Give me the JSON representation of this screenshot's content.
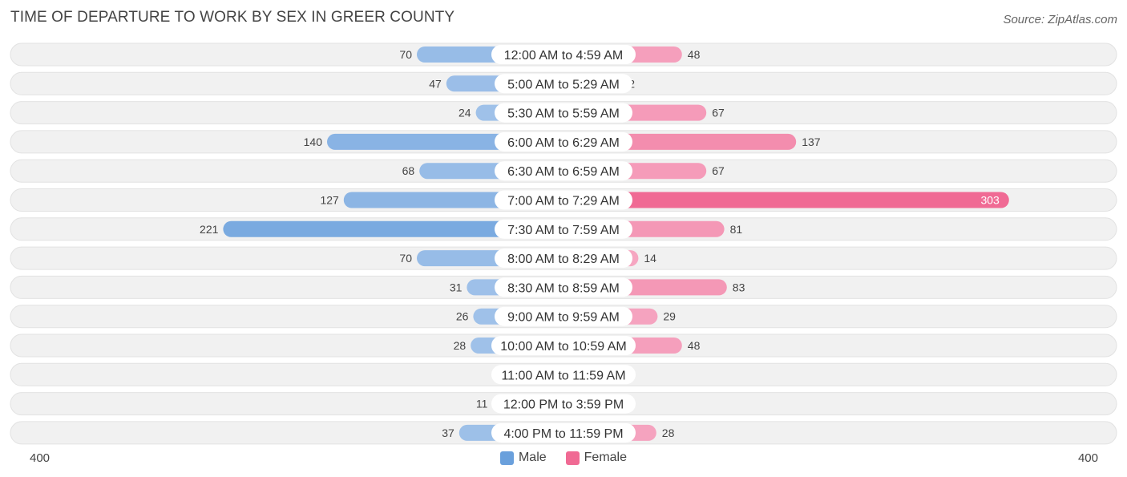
{
  "title": "TIME OF DEPARTURE TO WORK BY SEX IN GREER COUNTY",
  "source": "Source: ZipAtlas.com",
  "chart_data": {
    "type": "bar",
    "orientation": "horizontal-diverging",
    "categories": [
      "12:00 AM to 4:59 AM",
      "5:00 AM to 5:29 AM",
      "5:30 AM to 5:59 AM",
      "6:00 AM to 6:29 AM",
      "6:30 AM to 6:59 AM",
      "7:00 AM to 7:29 AM",
      "7:30 AM to 7:59 AM",
      "8:00 AM to 8:29 AM",
      "8:30 AM to 8:59 AM",
      "9:00 AM to 9:59 AM",
      "10:00 AM to 10:59 AM",
      "11:00 AM to 11:59 AM",
      "12:00 PM to 3:59 PM",
      "4:00 PM to 11:59 PM"
    ],
    "series": [
      {
        "name": "Male",
        "values": [
          70,
          47,
          24,
          140,
          68,
          127,
          221,
          70,
          31,
          26,
          28,
          0,
          11,
          37
        ]
      },
      {
        "name": "Female",
        "values": [
          48,
          2,
          67,
          137,
          67,
          303,
          81,
          14,
          83,
          29,
          48,
          0,
          0,
          28
        ]
      }
    ],
    "axis_min_label": "400",
    "axis_max_label": "400",
    "xlim": [
      -400,
      400
    ],
    "legend_position": "bottom-center",
    "colors": {
      "male_light": "#a4c4ea",
      "male_dark": "#6aa0dc",
      "female_light": "#f6a9c3",
      "female_dark": "#f06a94",
      "row_bg": "#f1f1f1"
    }
  }
}
